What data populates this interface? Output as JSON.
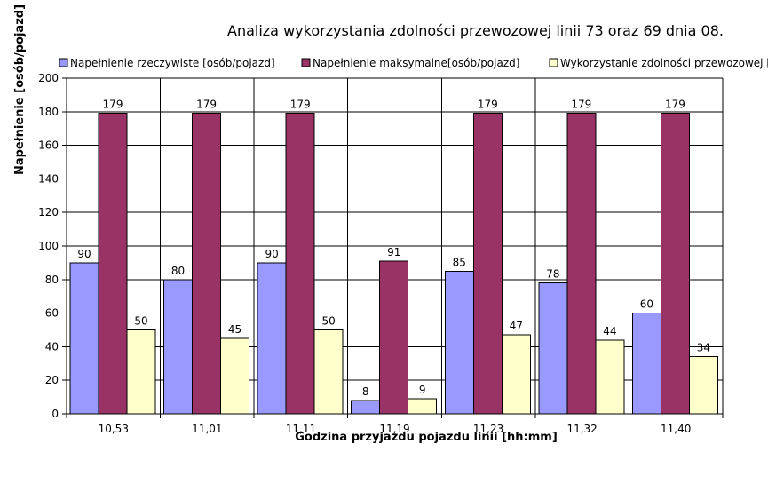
{
  "chart_data": {
    "type": "bar",
    "title": "Analiza wykorzystania zdolności przewozowej linii 73 oraz 69 dnia 08.",
    "xlabel": "Godzina przyjazdu pojazdu linii [hh:mm]",
    "ylabel": "Napełnienie [osób/pojazd]",
    "ylim": [
      0,
      200
    ],
    "yticks": [
      0,
      20,
      40,
      60,
      80,
      100,
      120,
      140,
      160,
      180,
      200
    ],
    "categories": [
      "10,53",
      "11,01",
      "11,11",
      "11,19",
      "11,23",
      "11,32",
      "11,40"
    ],
    "series": [
      {
        "name": "Napełnienie rzeczywiste [osób/pojazd]",
        "color": "#9999ff",
        "values": [
          90,
          80,
          90,
          8,
          85,
          78,
          60
        ],
        "labels": [
          "90",
          "80",
          "90",
          "8",
          "85",
          "78",
          "60"
        ]
      },
      {
        "name": "Napełnienie maksymalne[osób/pojazd]",
        "color": "#993366",
        "values": [
          179,
          179,
          179,
          91,
          179,
          179,
          179
        ],
        "labels": [
          "179",
          "179",
          "179",
          "91",
          "179",
          "179",
          "179"
        ]
      },
      {
        "name": "Wykorzystanie zdolności przewozowej [",
        "color": "#ffffcc",
        "values": [
          50,
          45,
          50,
          9,
          47,
          44,
          34
        ],
        "labels": [
          "50",
          "45",
          "50",
          "9",
          "47",
          "44",
          "34"
        ]
      }
    ],
    "grid": true,
    "legend_position": "top"
  }
}
